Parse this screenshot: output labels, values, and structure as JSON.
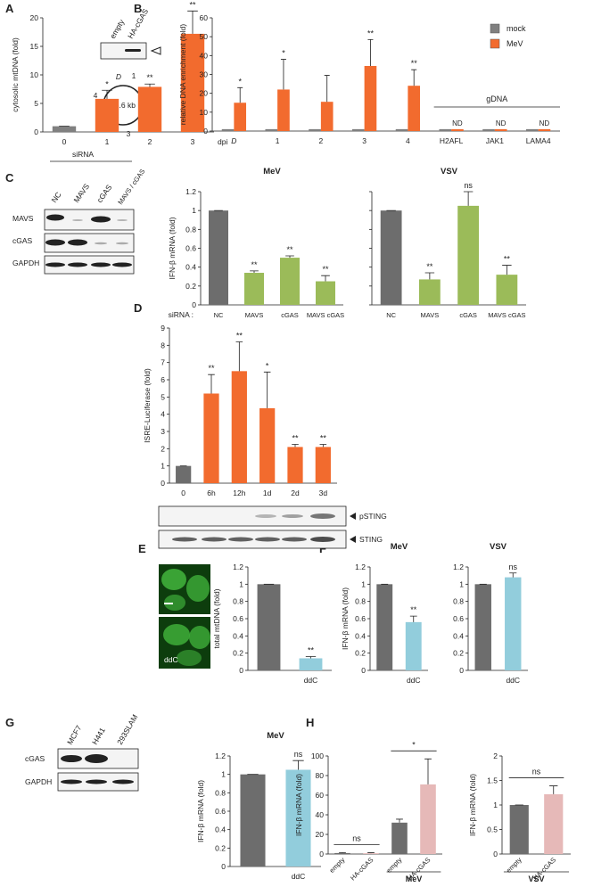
{
  "figure": {
    "panel_labels": [
      "A",
      "B",
      "C",
      "D",
      "E",
      "F",
      "G",
      "H"
    ],
    "blot_b": {
      "lanes": [
        "empty",
        "HA-cGAS"
      ]
    },
    "plasmid": {
      "size": "16.6 kb",
      "regions": [
        "D",
        "1",
        "2",
        "3",
        "4"
      ]
    },
    "blot_c": {
      "treatment": "siRNA",
      "lanes": [
        "NC",
        "MAVS",
        "cGAS",
        "MAVS / cGAS"
      ],
      "rows": [
        "MAVS",
        "cGAS",
        "GAPDH"
      ]
    },
    "blot_d": {
      "rows": [
        "pSTING",
        "STING"
      ]
    },
    "image_e": {
      "label": "ddC"
    },
    "blot_g": {
      "lanes": [
        "MCF7",
        "H441",
        "293SLAM"
      ],
      "rows": [
        "cGAS",
        "GAPDH"
      ]
    }
  },
  "chart_data": [
    {
      "type": "bar",
      "y_label": "cytosolic mtDNA (fold)",
      "x_label": "dpi",
      "categories": [
        "0",
        "1",
        "2",
        "3"
      ],
      "values": [
        1,
        5.8,
        7.9,
        17.2
      ],
      "errors": [
        0,
        1.5,
        0.5,
        4
      ],
      "annotations": [
        null,
        "*",
        "**",
        "**"
      ],
      "colors": [
        "#808080",
        "#f26b2e",
        "#f26b2e",
        "#f26b2e"
      ],
      "ylim": [
        0,
        20
      ],
      "yticks": [
        0,
        5,
        10,
        15,
        20
      ]
    },
    {
      "type": "bar",
      "y_label": "relative DNA enrichment (fold)",
      "category_group": "gDNA",
      "categories": [
        "D",
        "1",
        "2",
        "3",
        "4",
        "H2AFL",
        "JAK1",
        "LAMA4"
      ],
      "series": [
        {
          "name": "mock",
          "color": "#808080",
          "values": [
            1,
            1,
            1,
            1,
            1,
            1,
            1,
            1
          ]
        },
        {
          "name": "MeV",
          "color": "#f26b2e",
          "values": [
            15,
            22,
            15.5,
            34.5,
            24,
            1,
            1,
            1
          ],
          "errors": [
            8,
            16,
            14,
            14,
            8.5,
            null,
            null,
            null
          ],
          "annotations": [
            "*",
            "*",
            null,
            "**",
            "**",
            "ND",
            "ND",
            "ND"
          ]
        }
      ],
      "ylim": [
        0,
        60
      ],
      "yticks": [
        0,
        10,
        20,
        30,
        40,
        50,
        60
      ],
      "legend": "top-right"
    },
    {
      "type": "bar",
      "title": "MeV",
      "y_label": "IFN-β mRNA (fold)",
      "x_prefix": "siRNA :",
      "categories": [
        "NC",
        "MAVS",
        "cGAS",
        "MAVS cGAS"
      ],
      "values": [
        1,
        0.34,
        0.5,
        0.25
      ],
      "errors": [
        0,
        0.02,
        0.02,
        0.06
      ],
      "annotations": [
        null,
        "**",
        "**",
        "**"
      ],
      "colors": [
        "#6d6d6d",
        "#9bbb59",
        "#9bbb59",
        "#9bbb59"
      ],
      "ylim": [
        0,
        1.2
      ],
      "yticks": [
        0,
        0.2,
        0.4,
        0.6,
        0.8,
        1,
        1.2
      ]
    },
    {
      "type": "bar",
      "title": "VSV",
      "categories": [
        "NC",
        "MAVS",
        "cGAS",
        "MAVS cGAS"
      ],
      "values": [
        1,
        0.27,
        1.05,
        0.32
      ],
      "errors": [
        0,
        0.07,
        0.15,
        0.1
      ],
      "annotations": [
        null,
        "**",
        "ns",
        "**"
      ],
      "colors": [
        "#6d6d6d",
        "#9bbb59",
        "#9bbb59",
        "#9bbb59"
      ],
      "ylim": [
        0,
        1.2
      ]
    },
    {
      "type": "bar",
      "y_label": "ISRE-Luciferase (fold)",
      "categories": [
        "0",
        "6h",
        "12h",
        "1d",
        "2d",
        "3d"
      ],
      "values": [
        1,
        5.2,
        6.5,
        4.35,
        2.1,
        2.1
      ],
      "errors": [
        0,
        1.1,
        1.7,
        2.1,
        0.15,
        0.15
      ],
      "annotations": [
        null,
        "**",
        "**",
        "*",
        "**",
        "**"
      ],
      "colors": [
        "#6d6d6d",
        "#f26b2e",
        "#f26b2e",
        "#f26b2e",
        "#f26b2e",
        "#f26b2e"
      ],
      "ylim": [
        0,
        9
      ],
      "yticks": [
        0,
        1,
        2,
        3,
        4,
        5,
        6,
        7,
        8,
        9
      ]
    },
    {
      "type": "bar",
      "y_label": "total mtDNA (fold)",
      "categories": [
        null,
        "ddC"
      ],
      "values": [
        1,
        0.14
      ],
      "errors": [
        0,
        0.02
      ],
      "annotations": [
        null,
        "**"
      ],
      "colors": [
        "#6d6d6d",
        "#92cddc"
      ],
      "ylim": [
        0,
        1.2
      ],
      "yticks": [
        0,
        0.2,
        0.4,
        0.6,
        0.8,
        1,
        1.2
      ]
    },
    {
      "type": "bar",
      "title": "MeV",
      "y_label": "IFN-β mRNA (fold)",
      "categories": [
        null,
        "ddC"
      ],
      "values": [
        1,
        0.56
      ],
      "errors": [
        0,
        0.07
      ],
      "annotations": [
        null,
        "**"
      ],
      "colors": [
        "#6d6d6d",
        "#92cddc"
      ],
      "ylim": [
        0,
        1.2
      ],
      "yticks": [
        0,
        0.2,
        0.4,
        0.6,
        0.8,
        1,
        1.2
      ]
    },
    {
      "type": "bar",
      "title": "VSV",
      "categories": [
        null,
        "ddC"
      ],
      "values": [
        1,
        1.08
      ],
      "errors": [
        0,
        0.05
      ],
      "annotations": [
        null,
        "ns"
      ],
      "colors": [
        "#6d6d6d",
        "#92cddc"
      ],
      "ylim": [
        0,
        1.2
      ],
      "yticks": [
        0,
        0.2,
        0.4,
        0.6,
        0.8,
        1,
        1.2
      ]
    },
    {
      "type": "bar",
      "title": "MeV",
      "y_label": "IFN-β mRNA (fold)",
      "categories": [
        null,
        "ddC"
      ],
      "values": [
        1,
        1.05
      ],
      "errors": [
        0,
        0.1
      ],
      "annotations": [
        null,
        "ns"
      ],
      "colors": [
        "#6d6d6d",
        "#92cddc"
      ],
      "ylim": [
        0,
        1.2
      ],
      "yticks": [
        0,
        0.2,
        0.4,
        0.6,
        0.8,
        1,
        1.2
      ]
    },
    {
      "type": "bar",
      "y_label": "IFN-β mRNA (fold)",
      "categories": [
        "empty",
        "HA-cGAS",
        "empty",
        "HA-cGAS"
      ],
      "values": [
        1,
        0.8,
        32,
        71
      ],
      "errors": [
        0.5,
        0.5,
        3.5,
        26
      ],
      "colors": [
        "#6d6d6d",
        "#e6b9b8",
        "#6d6d6d",
        "#e6b9b8"
      ],
      "groups": [
        {
          "bracket": "ns"
        },
        {
          "name": "MeV",
          "bracket": "*"
        }
      ],
      "ylim": [
        0,
        100
      ],
      "yticks": [
        0,
        20,
        40,
        60,
        80,
        100
      ]
    },
    {
      "type": "bar",
      "y_label": "IFN-β mRNA (fold)",
      "categories": [
        "empty",
        "HA-cGAS"
      ],
      "values": [
        1,
        1.22
      ],
      "errors": [
        0,
        0.17
      ],
      "colors": [
        "#6d6d6d",
        "#e6b9b8"
      ],
      "groups": [
        {
          "name": "VSV",
          "bracket": "ns"
        }
      ],
      "ylim": [
        0,
        2
      ],
      "yticks": [
        0,
        0.5,
        1,
        1.5,
        2
      ]
    }
  ]
}
